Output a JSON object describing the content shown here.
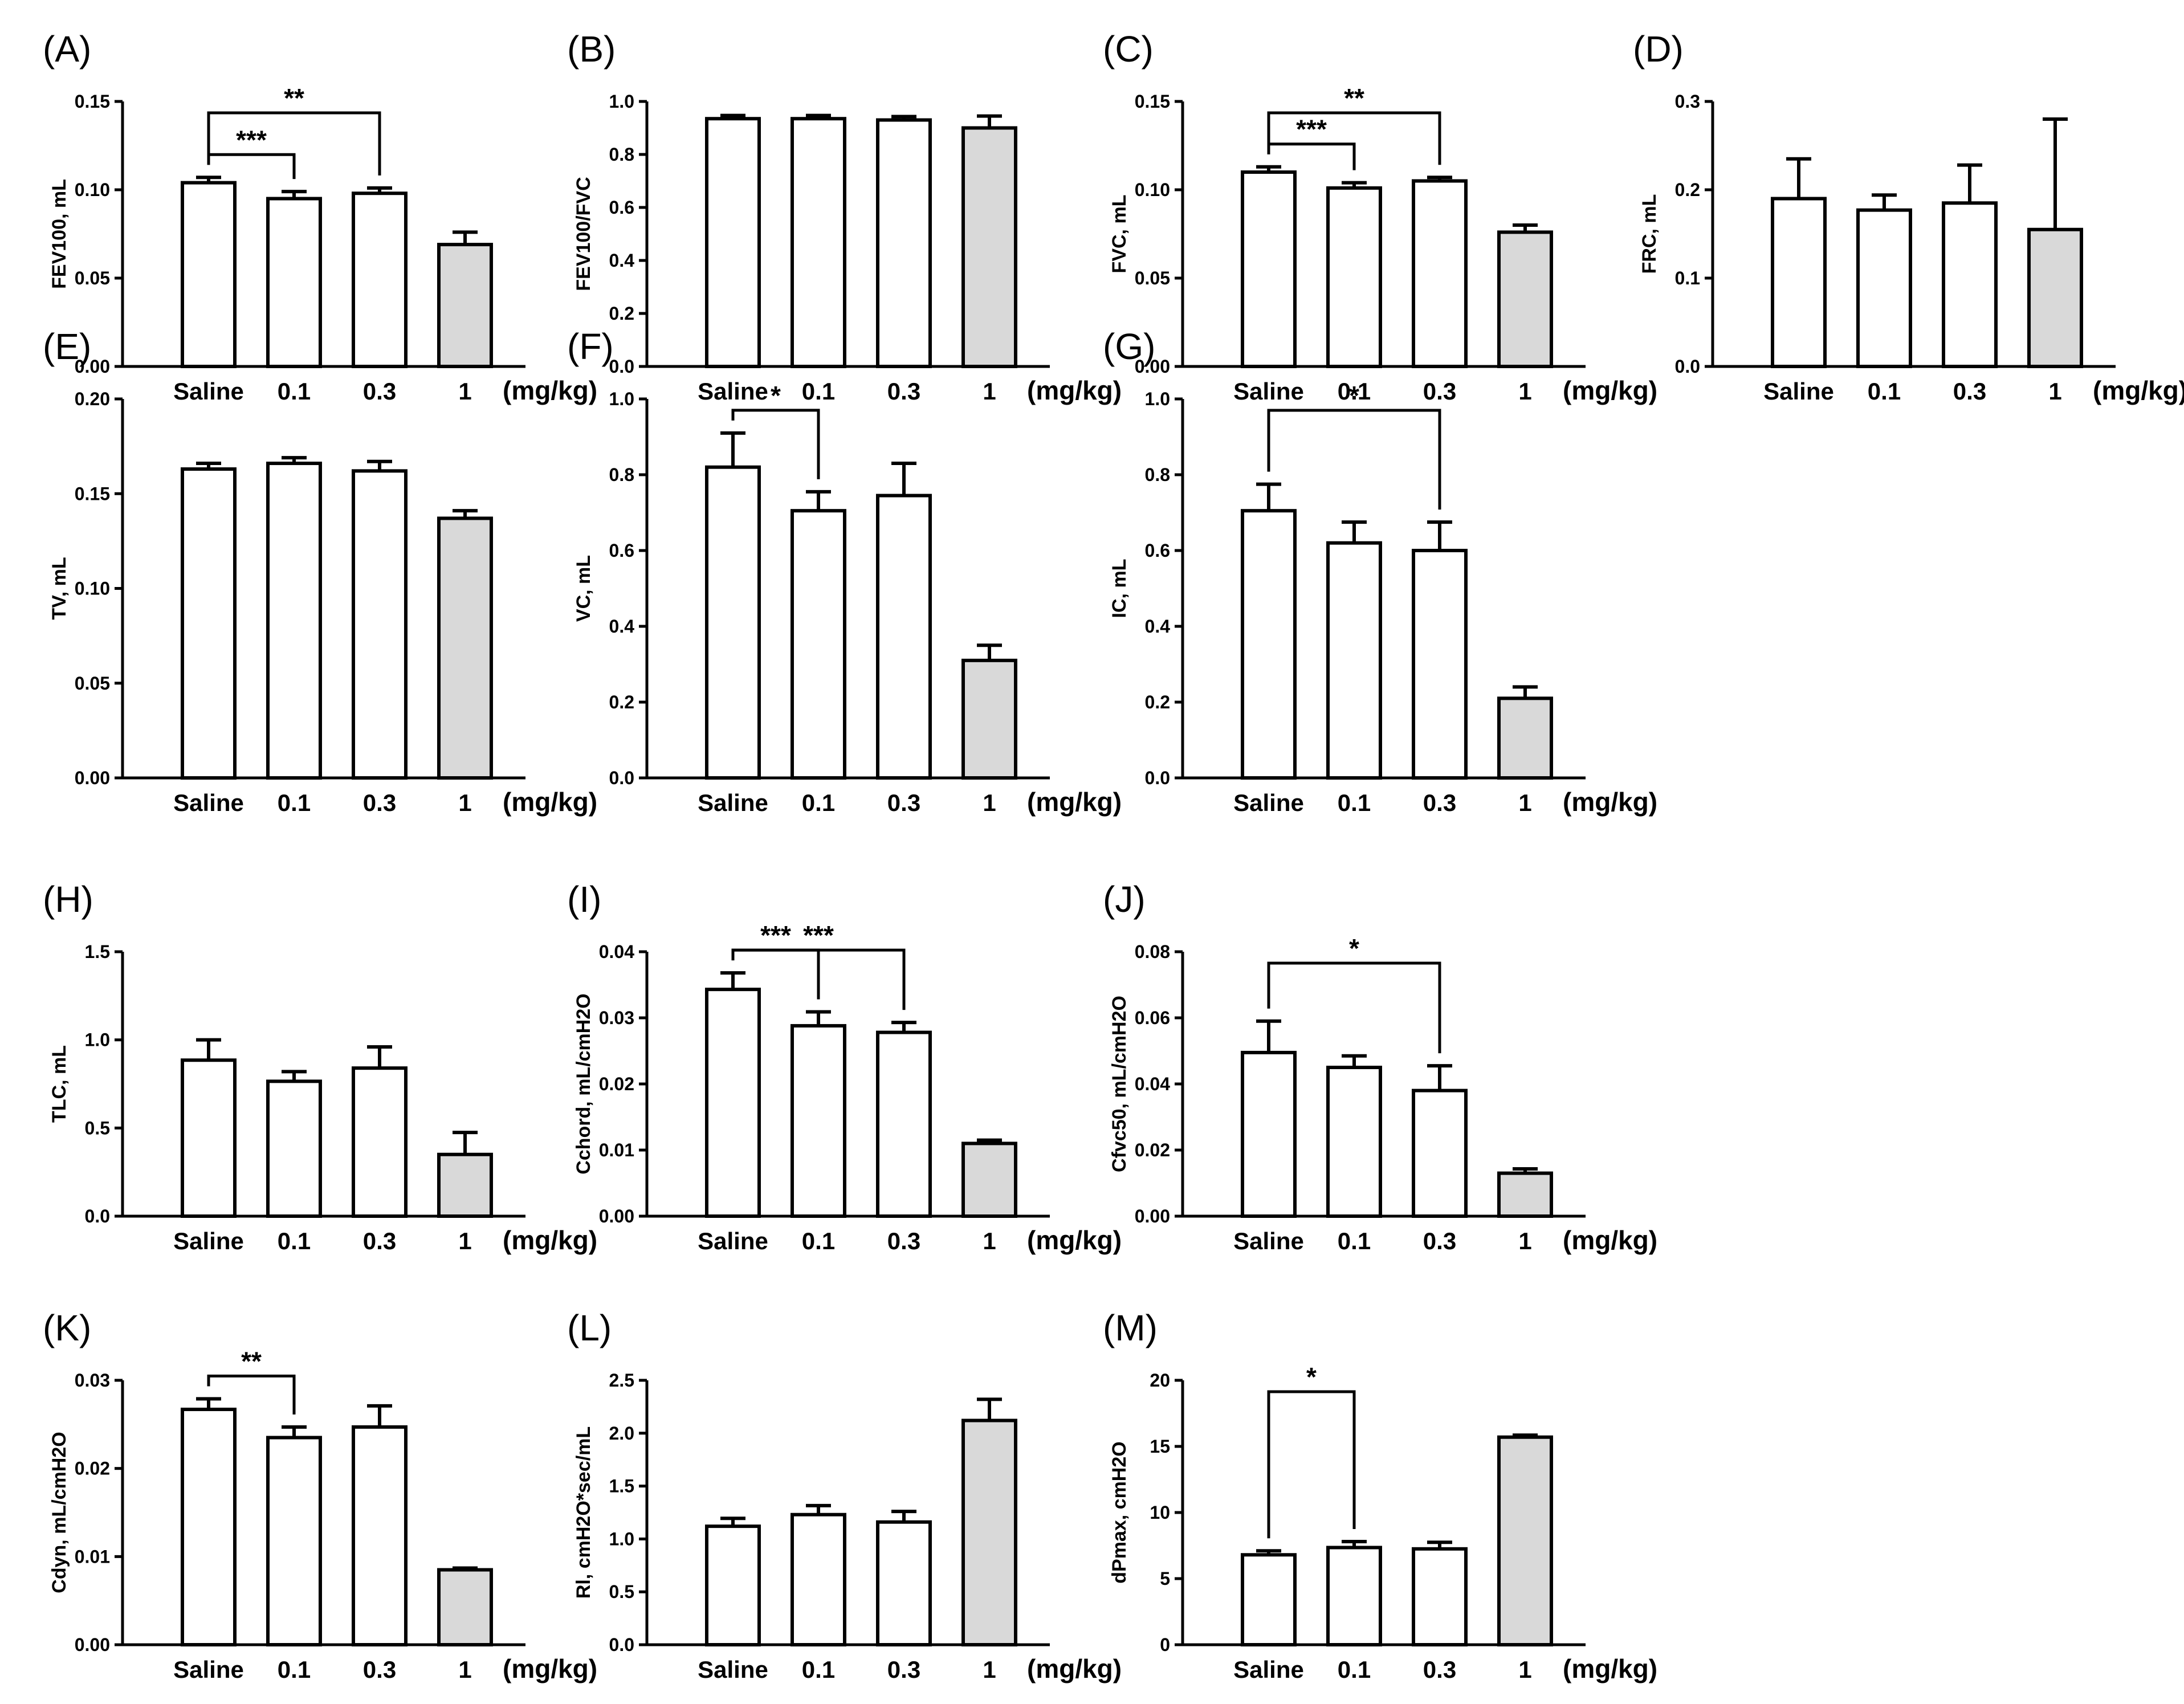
{
  "colors": {
    "control_bar": "#ffffff",
    "high_dose_bar": "#d9d9d9",
    "ink": "#000000"
  },
  "chart_data": [
    {
      "id": "A",
      "label": "(A)",
      "type": "bar",
      "ylabel": "FEV100, mL",
      "categories": [
        "Saline",
        "0.1",
        "0.3",
        "1"
      ],
      "unit_label": "(mg/kg)",
      "values": [
        0.104,
        0.095,
        0.098,
        0.069
      ],
      "errors": [
        0.003,
        0.004,
        0.003,
        0.007
      ],
      "ylim": [
        0,
        0.15
      ],
      "ticks": [
        "0.00",
        "0.05",
        "0.10",
        "0.15"
      ],
      "sig": [
        {
          "from": 0,
          "to": 1,
          "label": "***"
        },
        {
          "from": 0,
          "to": 2,
          "label": "**"
        }
      ]
    },
    {
      "id": "B",
      "label": "(B)",
      "type": "bar",
      "ylabel": "FEV100/FVC",
      "categories": [
        "Saline",
        "0.1",
        "0.3",
        "1"
      ],
      "unit_label": "(mg/kg)",
      "values": [
        0.935,
        0.935,
        0.93,
        0.9
      ],
      "errors": [
        0.012,
        0.012,
        0.013,
        0.045
      ],
      "ylim": [
        0,
        1.0
      ],
      "ticks": [
        "0.0",
        "0.2",
        "0.4",
        "0.6",
        "0.8",
        "1.0"
      ],
      "sig": []
    },
    {
      "id": "C",
      "label": "(C)",
      "type": "bar",
      "ylabel": "FVC, mL",
      "categories": [
        "Saline",
        "0.1",
        "0.3",
        "1"
      ],
      "unit_label": "(mg/kg)",
      "values": [
        0.11,
        0.101,
        0.105,
        0.076
      ],
      "errors": [
        0.003,
        0.003,
        0.002,
        0.004
      ],
      "ylim": [
        0,
        0.15
      ],
      "ticks": [
        "0.00",
        "0.05",
        "0.10",
        "0.15"
      ],
      "sig": [
        {
          "from": 0,
          "to": 1,
          "label": "***"
        },
        {
          "from": 0,
          "to": 2,
          "label": "**"
        }
      ]
    },
    {
      "id": "D",
      "label": "(D)",
      "type": "bar",
      "ylabel": "FRC, mL",
      "categories": [
        "Saline",
        "0.1",
        "0.3",
        "1"
      ],
      "unit_label": "(mg/kg)",
      "values": [
        0.19,
        0.177,
        0.185,
        0.155
      ],
      "errors": [
        0.045,
        0.017,
        0.043,
        0.125
      ],
      "ylim": [
        0,
        0.3
      ],
      "ticks": [
        "0.0",
        "0.1",
        "0.2",
        "0.3"
      ],
      "sig": []
    },
    {
      "id": "E",
      "label": "(E)",
      "type": "bar",
      "ylabel": "TV, mL",
      "categories": [
        "Saline",
        "0.1",
        "0.3",
        "1"
      ],
      "unit_label": "(mg/kg)",
      "values": [
        0.163,
        0.166,
        0.162,
        0.137
      ],
      "errors": [
        0.003,
        0.003,
        0.005,
        0.004
      ],
      "ylim": [
        0,
        0.2
      ],
      "ticks": [
        "0.00",
        "0.05",
        "0.10",
        "0.15",
        "0.20"
      ],
      "sig": []
    },
    {
      "id": "F",
      "label": "(F)",
      "type": "bar",
      "ylabel": "VC, mL",
      "categories": [
        "Saline",
        "0.1",
        "0.3",
        "1"
      ],
      "unit_label": "(mg/kg)",
      "values": [
        0.82,
        0.705,
        0.745,
        0.31
      ],
      "errors": [
        0.09,
        0.05,
        0.085,
        0.04
      ],
      "ylim": [
        0,
        1.0
      ],
      "ticks": [
        "0.0",
        "0.2",
        "0.4",
        "0.6",
        "0.8",
        "1.0"
      ],
      "sig": [
        {
          "from": 0,
          "to": 1,
          "label": "*"
        }
      ]
    },
    {
      "id": "G",
      "label": "(G)",
      "type": "bar",
      "ylabel": "IC, mL",
      "categories": [
        "Saline",
        "0.1",
        "0.3",
        "1"
      ],
      "unit_label": "(mg/kg)",
      "values": [
        0.705,
        0.62,
        0.6,
        0.21
      ],
      "errors": [
        0.07,
        0.055,
        0.075,
        0.03
      ],
      "ylim": [
        0,
        1.0
      ],
      "ticks": [
        "0.0",
        "0.2",
        "0.4",
        "0.6",
        "0.8",
        "1.0"
      ],
      "sig": [
        {
          "from": 0,
          "to": 2,
          "label": "*"
        }
      ]
    },
    {
      "id": "H",
      "label": "(H)",
      "type": "bar",
      "ylabel": "TLC, mL",
      "categories": [
        "Saline",
        "0.1",
        "0.3",
        "1"
      ],
      "unit_label": "(mg/kg)",
      "values": [
        0.885,
        0.765,
        0.84,
        0.35
      ],
      "errors": [
        0.115,
        0.055,
        0.12,
        0.125
      ],
      "ylim": [
        0,
        1.5
      ],
      "ticks": [
        "0.0",
        "0.5",
        "1.0",
        "1.5"
      ],
      "sig": []
    },
    {
      "id": "I",
      "label": "(I)",
      "type": "bar",
      "ylabel": "Cchord, mL/cmH2O",
      "categories": [
        "Saline",
        "0.1",
        "0.3",
        "1"
      ],
      "unit_label": "(mg/kg)",
      "values": [
        0.0343,
        0.0288,
        0.0278,
        0.011
      ],
      "errors": [
        0.0025,
        0.0021,
        0.0015,
        0.0005
      ],
      "ylim": [
        0,
        0.04
      ],
      "ticks": [
        "0.00",
        "0.01",
        "0.02",
        "0.03",
        "0.04"
      ],
      "sig": [
        {
          "from": 0,
          "to": 1,
          "label": "***"
        },
        {
          "from": 0,
          "to": 2,
          "label": "***"
        }
      ]
    },
    {
      "id": "J",
      "label": "(J)",
      "type": "bar",
      "ylabel": "Cfvc50, mL/cmH2O",
      "categories": [
        "Saline",
        "0.1",
        "0.3",
        "1"
      ],
      "unit_label": "(mg/kg)",
      "values": [
        0.0495,
        0.045,
        0.038,
        0.013
      ],
      "errors": [
        0.0095,
        0.0035,
        0.0075,
        0.0013
      ],
      "ylim": [
        0,
        0.08
      ],
      "ticks": [
        "0.00",
        "0.02",
        "0.04",
        "0.06",
        "0.08"
      ],
      "sig": [
        {
          "from": 0,
          "to": 2,
          "label": "*"
        }
      ]
    },
    {
      "id": "K",
      "label": "(K)",
      "type": "bar",
      "ylabel": "Cdyn, mL/cmH2O",
      "categories": [
        "Saline",
        "0.1",
        "0.3",
        "1"
      ],
      "unit_label": "(mg/kg)",
      "values": [
        0.0267,
        0.0235,
        0.0247,
        0.0085
      ],
      "errors": [
        0.0012,
        0.0012,
        0.0024,
        0.0002
      ],
      "ylim": [
        0,
        0.03
      ],
      "ticks": [
        "0.00",
        "0.01",
        "0.02",
        "0.03"
      ],
      "sig": [
        {
          "from": 0,
          "to": 1,
          "label": "**"
        }
      ]
    },
    {
      "id": "L",
      "label": "(L)",
      "type": "bar",
      "ylabel": "Rl, cmH2O*sec/mL",
      "categories": [
        "Saline",
        "0.1",
        "0.3",
        "1"
      ],
      "unit_label": "(mg/kg)",
      "values": [
        1.12,
        1.23,
        1.16,
        2.12
      ],
      "errors": [
        0.075,
        0.085,
        0.1,
        0.2
      ],
      "ylim": [
        0,
        2.5
      ],
      "ticks": [
        "0.0",
        "0.5",
        "1.0",
        "1.5",
        "2.0",
        "2.5"
      ],
      "sig": []
    },
    {
      "id": "M",
      "label": "(M)",
      "type": "bar",
      "ylabel": "dPmax, cmH2O",
      "categories": [
        "Saline",
        "0.1",
        "0.3",
        "1"
      ],
      "unit_label": "(mg/kg)",
      "values": [
        6.8,
        7.35,
        7.25,
        15.7
      ],
      "errors": [
        0.3,
        0.45,
        0.5,
        0.15
      ],
      "ylim": [
        0,
        20
      ],
      "ticks": [
        "0",
        "5",
        "10",
        "15",
        "20"
      ],
      "sig": [
        {
          "from": 0,
          "to": 1,
          "label": "*"
        }
      ]
    }
  ]
}
